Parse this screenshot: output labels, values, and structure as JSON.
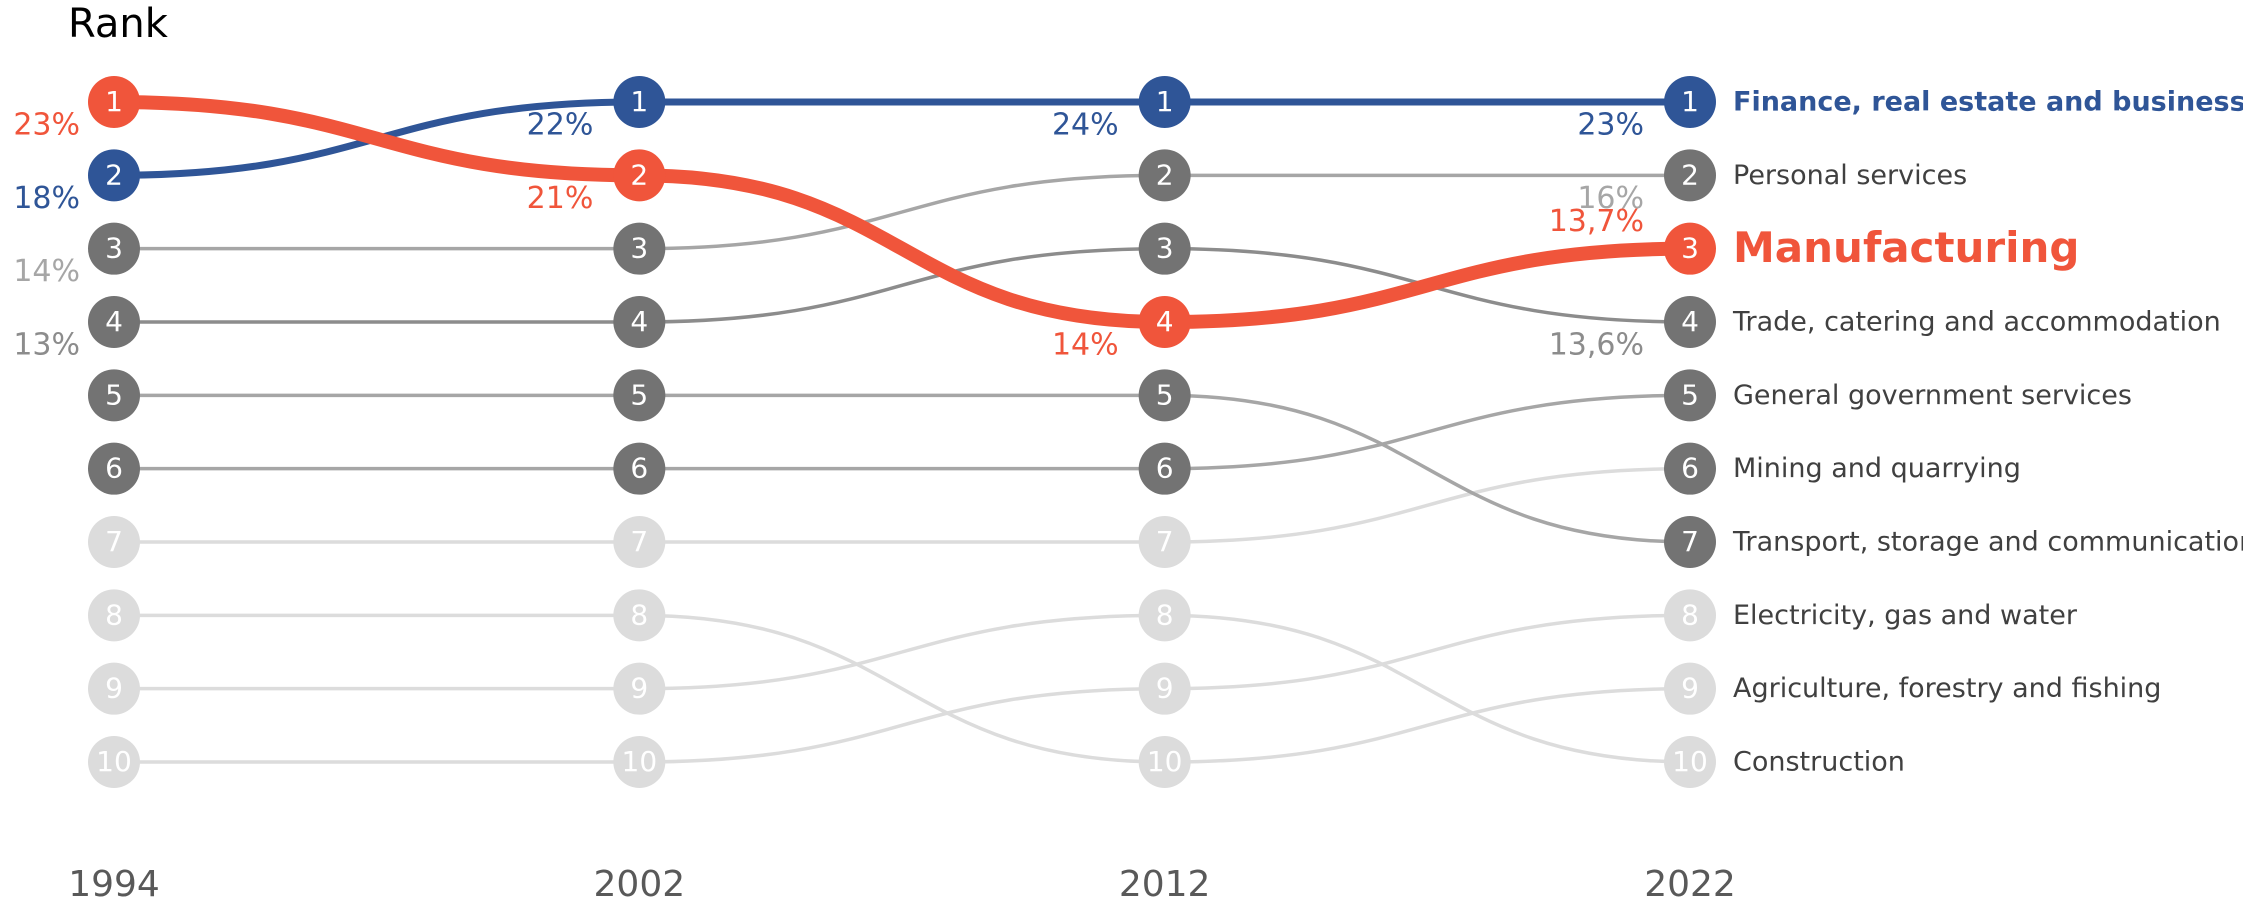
{
  "chart_data": {
    "type": "bump",
    "y_title": "Rank",
    "categories": [
      "1994",
      "2002",
      "2012",
      "2022"
    ],
    "ylim": [
      1,
      10
    ],
    "series": [
      {
        "name": "Finance, real estate and business services",
        "color": "#2f5597",
        "marker_colors": [
          "#2f5597",
          "#2f5597",
          "#2f5597",
          "#2f5597"
        ],
        "label_color": "#2f5597",
        "line_width": 7,
        "values": [
          2,
          1,
          1,
          1
        ],
        "share_labels": [
          "18%",
          "22%",
          "24%",
          "23%"
        ]
      },
      {
        "name": "Personal services",
        "color": "#a6a6a6",
        "marker_colors": [
          "#737373",
          "#737373",
          "#737373",
          "#737373"
        ],
        "label_color": "#a6a6a6",
        "line_width": 3.5,
        "values": [
          3,
          3,
          2,
          2
        ],
        "share_labels": [
          "14%",
          null,
          null,
          "16%"
        ]
      },
      {
        "name": "Manufacturing",
        "color": "#f0553b",
        "marker_colors": [
          "#f0553b",
          "#f0553b",
          "#f0553b",
          "#f0553b"
        ],
        "label_color": "#f0553b",
        "line_width": 14,
        "values": [
          1,
          2,
          4,
          3
        ],
        "share_labels": [
          "23%",
          "21%",
          "14%",
          "13,7%"
        ]
      },
      {
        "name": "Trade, catering and accommodation",
        "color": "#8c8c8c",
        "marker_colors": [
          "#737373",
          "#737373",
          "#737373",
          "#737373"
        ],
        "label_color": "#8c8c8c",
        "line_width": 3.5,
        "values": [
          4,
          4,
          3,
          4
        ],
        "share_labels": [
          "13%",
          null,
          null,
          "13,6%"
        ]
      },
      {
        "name": "General government services",
        "color": "#a6a6a6",
        "marker_colors": [
          "#737373",
          "#737373",
          "#737373",
          "#737373"
        ],
        "label_color": "#a6a6a6",
        "line_width": 3.5,
        "values": [
          6,
          6,
          6,
          5
        ],
        "share_labels": [
          null,
          null,
          null,
          null
        ]
      },
      {
        "name": "Mining and quarrying",
        "color": "#dcdcdc",
        "marker_colors": [
          "#dcdcdc",
          "#dcdcdc",
          "#dcdcdc",
          "#737373"
        ],
        "label_color": "#a6a6a6",
        "line_width": 3.5,
        "values": [
          7,
          7,
          7,
          6
        ],
        "share_labels": [
          null,
          null,
          null,
          null
        ]
      },
      {
        "name": "Transport, storage and communication",
        "color": "#a6a6a6",
        "marker_colors": [
          "#737373",
          "#737373",
          "#737373",
          "#737373"
        ],
        "label_color": "#a6a6a6",
        "line_width": 3.5,
        "values": [
          5,
          5,
          5,
          7
        ],
        "share_labels": [
          null,
          null,
          null,
          null
        ]
      },
      {
        "name": "Electricity, gas and water",
        "color": "#dcdcdc",
        "marker_colors": [
          "#dcdcdc",
          "#dcdcdc",
          "#dcdcdc",
          "#dcdcdc"
        ],
        "label_color": "#a6a6a6",
        "line_width": 3.5,
        "values": [
          10,
          10,
          9,
          8
        ],
        "share_labels": [
          null,
          null,
          null,
          null
        ]
      },
      {
        "name": "Agriculture, forestry and fishing",
        "color": "#dcdcdc",
        "marker_colors": [
          "#dcdcdc",
          "#dcdcdc",
          "#dcdcdc",
          "#dcdcdc"
        ],
        "label_color": "#a6a6a6",
        "line_width": 3.5,
        "values": [
          8,
          8,
          10,
          9
        ],
        "share_labels": [
          null,
          null,
          null,
          null
        ]
      },
      {
        "name": "Construction",
        "color": "#dcdcdc",
        "marker_colors": [
          "#dcdcdc",
          "#dcdcdc",
          "#dcdcdc",
          "#dcdcdc"
        ],
        "label_color": "#a6a6a6",
        "line_width": 3.5,
        "values": [
          9,
          9,
          8,
          10
        ],
        "share_labels": [
          null,
          null,
          null,
          null
        ]
      }
    ]
  }
}
